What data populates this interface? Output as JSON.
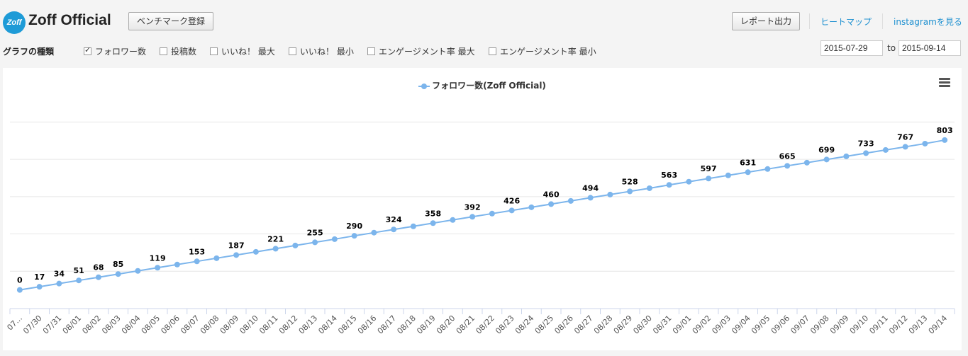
{
  "header": {
    "logo_text": "Zoff",
    "account_name": "Zoff Official",
    "benchmark_button": "ベンチマーク登録",
    "report_button": "レポート出力",
    "heatmap_link": "ヒートマップ",
    "instagram_link": "instagramを見る"
  },
  "filters": {
    "graph_type_label": "グラフの種類",
    "options": [
      {
        "label": "フォロワー数",
        "checked": true
      },
      {
        "label": "投稿数",
        "checked": false
      },
      {
        "label": "いいね！ 最大",
        "checked": false
      },
      {
        "label": "いいね！ 最小",
        "checked": false
      },
      {
        "label": "エンゲージメント率 最大",
        "checked": false
      },
      {
        "label": "エンゲージメント率 最小",
        "checked": false
      }
    ],
    "date_from": "2015-07-29",
    "date_to": "2015-09-14",
    "to_label": "to"
  },
  "colors": {
    "series": "#7cb5ec",
    "grid": "#e6e6e6",
    "link": "#1c8fd0"
  },
  "chart_data": {
    "type": "line",
    "title": "",
    "xlabel": "",
    "ylabel": "",
    "legend": "top-center",
    "grid": true,
    "x": [
      "07...",
      "07/30",
      "07/31",
      "08/01",
      "08/02",
      "08/03",
      "08/04",
      "08/05",
      "08/06",
      "08/07",
      "08/08",
      "08/09",
      "08/10",
      "08/11",
      "08/12",
      "08/13",
      "08/14",
      "08/15",
      "08/16",
      "08/17",
      "08/18",
      "08/19",
      "08/20",
      "08/21",
      "08/22",
      "08/23",
      "08/24",
      "08/25",
      "08/26",
      "08/27",
      "08/28",
      "08/29",
      "08/30",
      "08/31",
      "09/01",
      "09/02",
      "09/03",
      "09/04",
      "09/05",
      "09/06",
      "09/07",
      "09/08",
      "09/09",
      "09/10",
      "09/11",
      "09/12",
      "09/13",
      "09/14"
    ],
    "series": [
      {
        "name": "フォロワー数(Zoff Official)",
        "values": [
          0,
          17,
          34,
          51,
          68,
          85,
          102,
          119,
          136,
          153,
          170,
          187,
          204,
          221,
          238,
          255,
          272,
          290,
          307,
          324,
          341,
          358,
          375,
          392,
          409,
          426,
          443,
          460,
          477,
          494,
          511,
          528,
          545,
          563,
          580,
          597,
          614,
          631,
          648,
          665,
          682,
          699,
          716,
          733,
          750,
          767,
          784,
          803
        ],
        "data_labels": [
          "0",
          "17",
          "34",
          "51",
          "68",
          "85",
          null,
          "119",
          null,
          "153",
          null,
          "187",
          null,
          "221",
          null,
          "255",
          null,
          "290",
          null,
          "324",
          null,
          "358",
          null,
          "392",
          null,
          "426",
          null,
          "460",
          null,
          "494",
          null,
          "528",
          null,
          "563",
          null,
          "597",
          null,
          "631",
          null,
          "665",
          null,
          "699",
          null,
          "733",
          null,
          "767",
          null,
          "803"
        ]
      }
    ],
    "ylim": [
      -100,
      1000
    ]
  }
}
